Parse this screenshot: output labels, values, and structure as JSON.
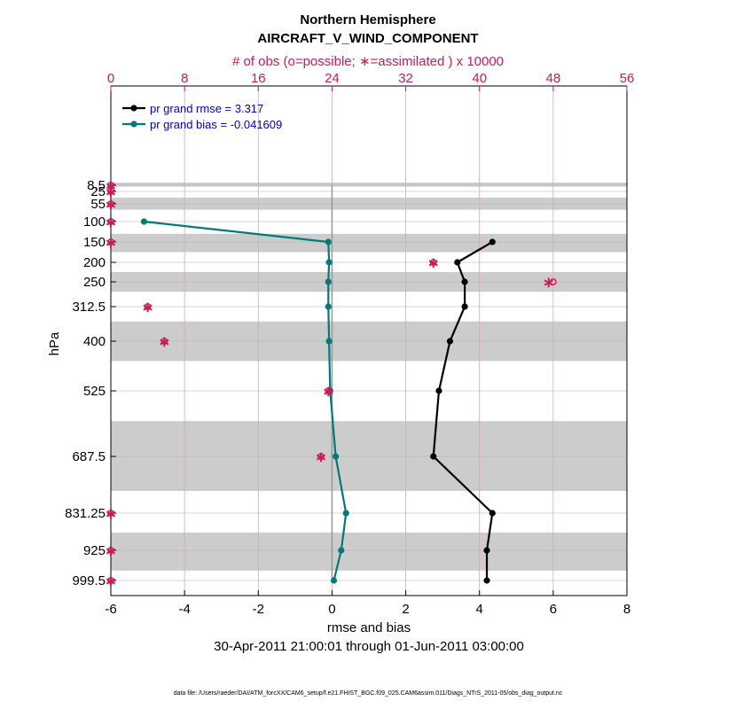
{
  "chart_data": {
    "type": "line",
    "title_line1": "Northern Hemisphere",
    "title_line2": "AIRCRAFT_V_WIND_COMPONENT",
    "top_axis_label": "# of obs (o=possible; ∗=assimilated ) x 10000",
    "xlabel": "rmse and bias",
    "ylabel": "hPa",
    "date_range": "30-Apr-2011 21:00:01 through 01-Jun-2011 03:00:00",
    "footnote": "data file: /Users/raeder/DAI/ATM_forcXX/CAM6_setup/f.e21.FHIST_BGC.f09_025.CAM6assim.011/Diags_NTrS_2011-05/obs_diag_output.nc",
    "xlim": [
      -6,
      8
    ],
    "x_ticks": [
      "-6",
      "-4",
      "-2",
      "0",
      "2",
      "4",
      "6",
      "8"
    ],
    "top_xlim": [
      0,
      56
    ],
    "top_ticks": [
      "0",
      "8",
      "16",
      "24",
      "32",
      "40",
      "48",
      "56"
    ],
    "levels": [
      8.5,
      25,
      55,
      100,
      150,
      200,
      250,
      312.5,
      400,
      525,
      687.5,
      831.25,
      925,
      999.5
    ],
    "level_labels": [
      "8.5",
      "25",
      "55",
      "100",
      "150",
      "200",
      "250",
      "312.5",
      "400",
      "525",
      "687.5",
      "831.25",
      "925",
      "999.5"
    ],
    "shaded_bands_hPa": [
      [
        5,
        12
      ],
      [
        40,
        70
      ],
      [
        130,
        175
      ],
      [
        225,
        275
      ],
      [
        350,
        450
      ],
      [
        600,
        775
      ],
      [
        880,
        975
      ]
    ],
    "grid": true,
    "legend_position": "top-left",
    "series": [
      {
        "name": "pr grand rmse = 3.317",
        "color": "#000000",
        "levels": [
          150,
          200,
          250,
          312.5,
          400,
          525,
          687.5,
          831.25,
          925,
          999.5
        ],
        "values": [
          4.35,
          3.4,
          3.6,
          3.6,
          3.2,
          2.9,
          2.75,
          4.35,
          4.2,
          4.2
        ]
      },
      {
        "name": "pr grand bias = -0.041609",
        "color": "#007a7a",
        "levels": [
          100,
          150,
          200,
          250,
          312.5,
          400,
          525,
          687.5,
          831.25,
          925,
          999.5
        ],
        "values": [
          -5.1,
          -0.1,
          -0.08,
          -0.1,
          -0.1,
          -0.08,
          -0.05,
          0.1,
          0.38,
          0.25,
          0.05
        ]
      }
    ],
    "obs_counts": {
      "color": "#cc1a55",
      "levels": [
        8.5,
        25,
        55,
        100,
        150,
        200,
        250,
        312.5,
        400,
        525,
        687.5,
        831.25,
        925,
        999.5
      ],
      "possible": [
        0,
        0,
        0,
        0,
        0,
        35,
        48,
        4,
        5.8,
        23.6,
        22.8,
        0,
        0,
        0
      ],
      "assimilated": [
        0,
        0,
        0,
        0,
        0,
        35,
        47.5,
        4,
        5.8,
        23.6,
        22.8,
        0,
        0,
        0
      ]
    }
  }
}
